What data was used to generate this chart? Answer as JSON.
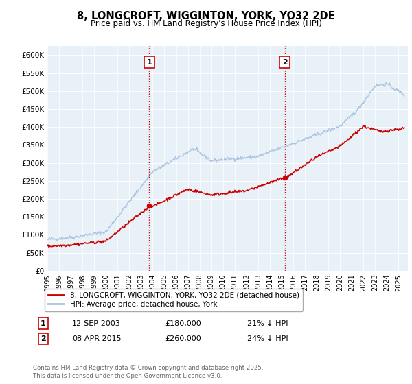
{
  "title": "8, LONGCROFT, WIGGINTON, YORK, YO32 2DE",
  "subtitle": "Price paid vs. HM Land Registry's House Price Index (HPI)",
  "ylim": [
    0,
    625000
  ],
  "yticks": [
    0,
    50000,
    100000,
    150000,
    200000,
    250000,
    300000,
    350000,
    400000,
    450000,
    500000,
    550000,
    600000
  ],
  "ytick_labels": [
    "£0",
    "£50K",
    "£100K",
    "£150K",
    "£200K",
    "£250K",
    "£300K",
    "£350K",
    "£400K",
    "£450K",
    "£500K",
    "£550K",
    "£600K"
  ],
  "hpi_color": "#a8c4e0",
  "price_color": "#cc0000",
  "vline_color": "#cc0000",
  "annotation_box_color": "#cc0000",
  "legend_label_price": "8, LONGCROFT, WIGGINTON, YORK, YO32 2DE (detached house)",
  "legend_label_hpi": "HPI: Average price, detached house, York",
  "transaction1_date": "12-SEP-2003",
  "transaction1_price": 180000,
  "transaction1_hpi_pct": "21% ↓ HPI",
  "transaction1_label": "1",
  "transaction1_x": 2003.7,
  "transaction2_date": "08-APR-2015",
  "transaction2_price": 260000,
  "transaction2_hpi_pct": "24% ↓ HPI",
  "transaction2_label": "2",
  "transaction2_x": 2015.27,
  "footnote": "Contains HM Land Registry data © Crown copyright and database right 2025.\nThis data is licensed under the Open Government Licence v3.0.",
  "bg_color": "#e8f0f8",
  "fig_bg_color": "#ffffff"
}
